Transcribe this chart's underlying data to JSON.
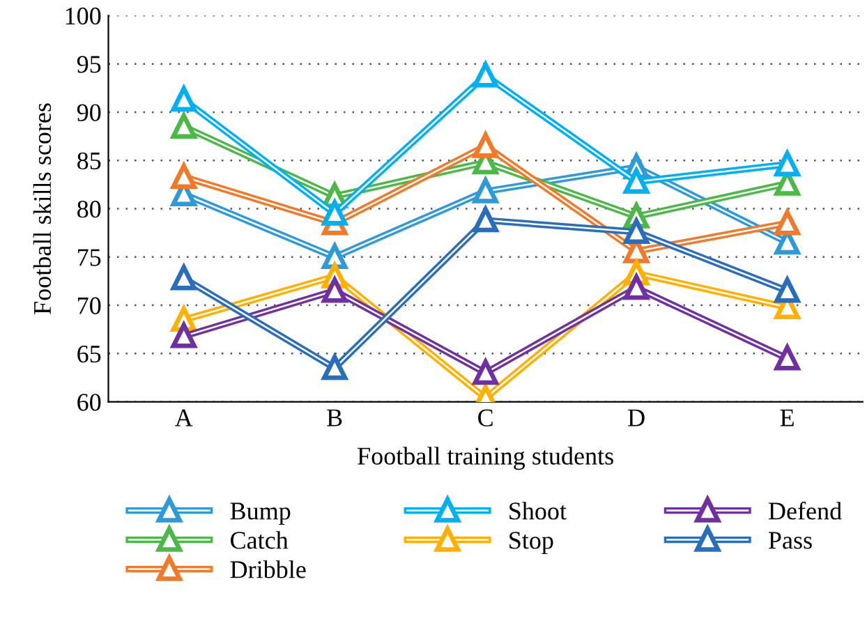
{
  "chart_data": {
    "type": "line",
    "xlabel": "Football training students",
    "ylabel": "Football skills scores",
    "categories": [
      "A",
      "B",
      "C",
      "D",
      "E"
    ],
    "series": [
      {
        "name": "Bump",
        "color": "#2e9ad8",
        "values": [
          81.5,
          75,
          81.8,
          84.3,
          76.5
        ]
      },
      {
        "name": "Catch",
        "color": "#4cb848",
        "values": [
          88.5,
          81.3,
          84.8,
          79.2,
          82.6
        ]
      },
      {
        "name": "Dribble",
        "color": "#f07a2a",
        "values": [
          83.3,
          78.5,
          86.5,
          75.6,
          78.5
        ]
      },
      {
        "name": "Shoot",
        "color": "#00b0f0",
        "values": [
          91.3,
          79.5,
          93.8,
          82.8,
          84.6
        ]
      },
      {
        "name": "Stop",
        "color": "#ffb000",
        "values": [
          68.5,
          73,
          60.4,
          73.3,
          69.8
        ]
      },
      {
        "name": "Defend",
        "color": "#7030a0",
        "values": [
          66.8,
          71.5,
          63,
          71.8,
          64.5
        ]
      },
      {
        "name": "Pass",
        "color": "#2a6ebb",
        "values": [
          72.8,
          63.5,
          78.8,
          77.6,
          71.5
        ]
      }
    ],
    "ylim": [
      60,
      100
    ],
    "yticks": [
      60,
      65,
      70,
      75,
      80,
      85,
      90,
      95,
      100
    ],
    "grid": "y",
    "legend": "bottom",
    "marker": "triangle",
    "line_style": "solid"
  }
}
